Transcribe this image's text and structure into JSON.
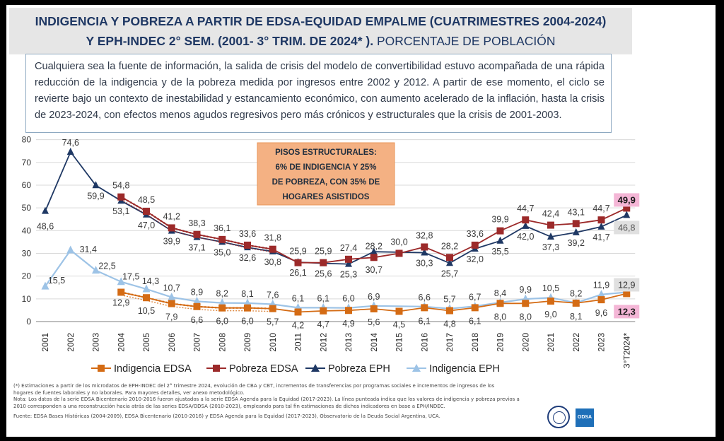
{
  "title": {
    "line1": "INDIGENCIA Y POBREZA A PARTIR DE EDSA-EQUIDAD EMPALME (CUATRIMESTRES 2004-2024)",
    "line2_bold": "Y EPH-INDEC 2°   SEM. (2001- 3°   TRIM. DE 2024* ).",
    "line2_sub": "PORCENTAJE DE POBLACIÓN"
  },
  "intro": "Cualquiera sea la fuente de información, la salida de crisis del modelo de convertibilidad estuvo acompañada de una rápida reducción de la indigencia y de la pobreza medida por ingresos entre 2002 y 2012. A partir de ese momento, el ciclo se revierte bajo un contexto de inestabilidad y estancamiento económico, con aumento acelerado de la inflación, hasta la crisis de 2023-2024, con efectos menos agudos regresivos pero más crónicos y estructurales que la crisis de 2001-2003.",
  "callout": [
    "PISOS ESTRUCTURALES:",
    "6% DE INDIGENCIA Y 25%",
    "DE POBREZA, CON 35% DE",
    "HOGARES ASISTIDOS"
  ],
  "colors": {
    "indigencia_edsa": "#d46b14",
    "pobreza_edsa": "#9c2a2a",
    "pobreza_eph": "#1f3864",
    "indigencia_eph": "#9dc3e6",
    "callout_bg": "#f4b183",
    "highlight_pink": "#f4b6d6",
    "highlight_gray": "#e0e0e0"
  },
  "chart_data": {
    "type": "line",
    "categories": [
      "2001",
      "2002",
      "2003",
      "2004",
      "2005",
      "2006",
      "2007",
      "2008",
      "2009",
      "2010",
      "2011",
      "2012",
      "2013",
      "2014",
      "2015",
      "2016",
      "2017",
      "2018",
      "2019",
      "2020",
      "2021",
      "2022",
      "2023",
      "3°T2024*"
    ],
    "ylim": [
      0,
      80
    ],
    "yticks": [
      "0",
      "10",
      "20",
      "30",
      "40",
      "50",
      "60",
      "70",
      "80"
    ],
    "grid": true,
    "legend_position": "bottom",
    "series": [
      {
        "name": "Indigencia EDSA",
        "key": "indigencia_edsa",
        "marker": "square",
        "values": [
          null,
          null,
          null,
          12.9,
          10.5,
          7.9,
          6.6,
          6.0,
          6.0,
          5.7,
          4.2,
          4.7,
          4.9,
          5.6,
          4.5,
          6.1,
          4.8,
          6.1,
          8.0,
          8.0,
          9.0,
          8.1,
          9.6,
          12.3
        ],
        "labels": [
          "",
          "",
          "",
          "12,9",
          "10,5",
          "7,9",
          "6,6",
          "6,0",
          "6,0",
          "5,7",
          "4,2",
          "4,7",
          "4,9",
          "5,6",
          "4,5",
          "6,1",
          "4,8",
          "6,1",
          "8,0",
          "8,0",
          "9,0",
          "8,1",
          "9,6",
          "12,3"
        ]
      },
      {
        "name": "Pobreza EDSA",
        "key": "pobreza_edsa",
        "marker": "square",
        "values": [
          null,
          null,
          null,
          54.8,
          48.5,
          41.2,
          38.3,
          36.1,
          33.6,
          31.8,
          25.9,
          25.9,
          27.4,
          28.2,
          30.0,
          32.8,
          28.2,
          33.6,
          39.9,
          44.7,
          42.4,
          43.1,
          44.7,
          49.9
        ],
        "labels": [
          "",
          "",
          "",
          "54,8",
          "48,5",
          "41,2",
          "38,3",
          "36,1",
          "33,6",
          "31,8",
          "25,9",
          "25,9",
          "27,4",
          "28,2",
          "30,0",
          "32,8",
          "28,2",
          "33,6",
          "39,9",
          "44,7",
          "42,4",
          "43,1",
          "44,7",
          "49,9"
        ]
      },
      {
        "name": "Pobreza EPH",
        "key": "pobreza_eph",
        "marker": "triangle",
        "values": [
          48.6,
          74.6,
          59.9,
          53.1,
          47.0,
          39.9,
          37.1,
          35.0,
          32.6,
          30.8,
          26.1,
          25.6,
          25.3,
          30.7,
          null,
          30.3,
          25.7,
          32.0,
          35.5,
          42.0,
          37.3,
          39.2,
          41.7,
          46.8
        ],
        "labels": [
          "48,6",
          "74,6",
          "59,9",
          "53,1",
          "47,0",
          "39,9",
          "37,1",
          "35,0",
          "32,6",
          "30,8",
          "26,1",
          "25,6",
          "25,3",
          "30,7",
          "",
          "30,3",
          "25,7",
          "32,0",
          "35,5",
          "42,0",
          "37,3",
          "39,2",
          "41,7",
          "46,8"
        ]
      },
      {
        "name": "Indigencia EPH",
        "key": "indigencia_eph",
        "marker": "triangle",
        "values": [
          15.5,
          31.4,
          22.5,
          17.5,
          14.3,
          10.7,
          8.9,
          8.2,
          8.1,
          7.6,
          6.1,
          6.1,
          6.0,
          6.9,
          null,
          6.6,
          5.7,
          6.7,
          8.4,
          9.9,
          10.5,
          8.2,
          11.9,
          12.9
        ],
        "labels": [
          "15,5",
          "31,4",
          "22,5",
          "17,5",
          "14,3",
          "10,7",
          "8,9",
          "8,2",
          "8,1",
          "7,6",
          "6,1",
          "6,1",
          "6,0",
          "6,9",
          "",
          "6,6",
          "5,7",
          "6,7",
          "8,4",
          "9,9",
          "10,5",
          "8,2",
          "11,9",
          "12,9"
        ]
      }
    ],
    "reconstructed_dotted": {
      "from": "2004",
      "to": "2010"
    }
  },
  "footnotes": {
    "line1": "(*) Estimaciones a partir de los microdatos de EPH-INDEC del 2°   trimestre 2024, evolución de CBA y CBT, incrementos de transferencias por programas sociales e incrementos de ingresos  de los",
    "line2": "hogares de fuentes laborales y no laborales. Para mayores detalles, ver anexo metodológico.",
    "line3": "Nota: Los datos de la serie EDSA Bicentenario 2010-2016 fueron ajustados a la serie EDSA Agenda para la Equidad (2017-2023). La línea punteada indica que los valores de indigencia y pobreza previos a",
    "line4": "2010 corresponden a una reconstrucción hacia atrás de las series EDSA/ODSA (2010-2023), empleando para tal fin estimaciones de dichos indicadores en base a EPH/INDEC.",
    "source": "Fuente: EDSA Bases Históricas (2004-2009), EDSA Bicentenario (2010-2016) y EDSA Agenda para la Equidad (2017-2023), Observatorio de la Deuda Social Argentina, UCA."
  },
  "logos": {
    "odsa": "ODSA"
  }
}
